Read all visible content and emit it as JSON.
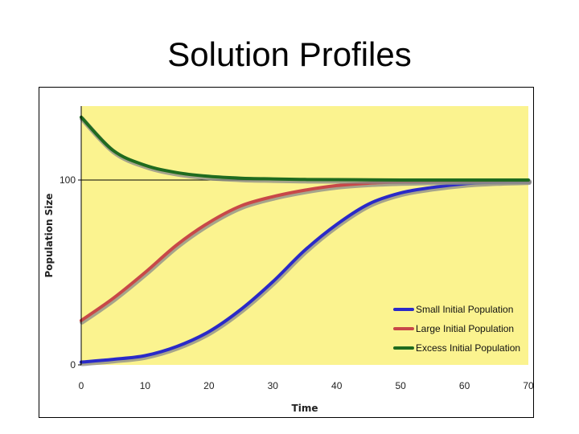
{
  "slide": {
    "title": "Solution Profiles"
  },
  "chart_data": {
    "type": "line",
    "title": "",
    "xlabel": "Time",
    "ylabel": "Population Size",
    "xlim": [
      0,
      70
    ],
    "ylim": [
      0,
      140
    ],
    "x_ticks": [
      "0",
      "10",
      "20",
      "30",
      "40",
      "50",
      "60",
      "70"
    ],
    "y_ticks": [
      "0",
      "100"
    ],
    "reference_line": {
      "y": 100
    },
    "grid": false,
    "background_color": "#fbf38f",
    "legend_position": "bottom-right",
    "series": [
      {
        "name": "Small Initial Population",
        "color": "#2a2ac8",
        "x": [
          0,
          5,
          10,
          15,
          20,
          25,
          30,
          35,
          40,
          45,
          50,
          55,
          60,
          65,
          70
        ],
        "y": [
          1.5,
          3,
          5,
          10,
          18,
          30,
          45,
          62,
          76,
          87,
          93,
          96,
          98,
          99,
          99.5
        ]
      },
      {
        "name": "Large Initial Population",
        "color": "#c84848",
        "x": [
          0,
          5,
          10,
          15,
          20,
          25,
          30,
          35,
          40,
          45,
          50,
          55,
          60,
          65,
          70
        ],
        "y": [
          24,
          36,
          50,
          65,
          77,
          86,
          91,
          94.5,
          97,
          98.3,
          99,
          99.4,
          99.6,
          99.8,
          99.9
        ]
      },
      {
        "name": "Excess Initial Population",
        "color": "#1f6b1f",
        "x": [
          0,
          5,
          10,
          15,
          20,
          25,
          30,
          35,
          40,
          45,
          50,
          55,
          60,
          65,
          70
        ],
        "y": [
          134,
          116,
          108,
          104,
          102,
          101,
          100.6,
          100.3,
          100.2,
          100.1,
          100,
          100,
          100,
          100,
          100
        ]
      }
    ]
  }
}
